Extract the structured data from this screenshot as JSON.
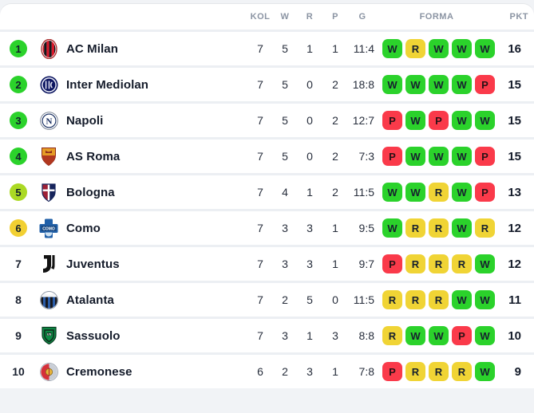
{
  "colors": {
    "win": "#2bd22b",
    "draw": "#f0d435",
    "loss": "#fa3a4a",
    "rank_green": "#2bd22b",
    "rank_lime": "#abd924",
    "rank_yellow": "#f2d032"
  },
  "table": {
    "headers": {
      "kol": "KOL",
      "w": "W",
      "r": "R",
      "p": "P",
      "g": "G",
      "forma": "FORMA",
      "pkt": "PKT"
    },
    "rows": [
      {
        "rank": "1",
        "rank_style": "green",
        "team": "AC Milan",
        "logo": "ac-milan",
        "kol": "7",
        "w": "5",
        "r": "1",
        "p": "1",
        "g": "11:4",
        "forma": [
          "W",
          "R",
          "W",
          "W",
          "W"
        ],
        "pkt": "16"
      },
      {
        "rank": "2",
        "rank_style": "green",
        "team": "Inter Mediolan",
        "logo": "inter",
        "kol": "7",
        "w": "5",
        "r": "0",
        "p": "2",
        "g": "18:8",
        "forma": [
          "W",
          "W",
          "W",
          "W",
          "P"
        ],
        "pkt": "15"
      },
      {
        "rank": "3",
        "rank_style": "green",
        "team": "Napoli",
        "logo": "napoli",
        "kol": "7",
        "w": "5",
        "r": "0",
        "p": "2",
        "g": "12:7",
        "forma": [
          "P",
          "W",
          "P",
          "W",
          "W"
        ],
        "pkt": "15"
      },
      {
        "rank": "4",
        "rank_style": "green",
        "team": "AS Roma",
        "logo": "as-roma",
        "kol": "7",
        "w": "5",
        "r": "0",
        "p": "2",
        "g": "7:3",
        "forma": [
          "P",
          "W",
          "W",
          "W",
          "P"
        ],
        "pkt": "15"
      },
      {
        "rank": "5",
        "rank_style": "lime",
        "team": "Bologna",
        "logo": "bologna",
        "kol": "7",
        "w": "4",
        "r": "1",
        "p": "2",
        "g": "11:5",
        "forma": [
          "W",
          "W",
          "R",
          "W",
          "P"
        ],
        "pkt": "13"
      },
      {
        "rank": "6",
        "rank_style": "yellow",
        "team": "Como",
        "logo": "como",
        "kol": "7",
        "w": "3",
        "r": "3",
        "p": "1",
        "g": "9:5",
        "forma": [
          "W",
          "R",
          "R",
          "W",
          "R"
        ],
        "pkt": "12"
      },
      {
        "rank": "7",
        "rank_style": "plain",
        "team": "Juventus",
        "logo": "juventus",
        "kol": "7",
        "w": "3",
        "r": "3",
        "p": "1",
        "g": "9:7",
        "forma": [
          "P",
          "R",
          "R",
          "R",
          "W"
        ],
        "pkt": "12"
      },
      {
        "rank": "8",
        "rank_style": "plain",
        "team": "Atalanta",
        "logo": "atalanta",
        "kol": "7",
        "w": "2",
        "r": "5",
        "p": "0",
        "g": "11:5",
        "forma": [
          "R",
          "R",
          "R",
          "W",
          "W"
        ],
        "pkt": "11"
      },
      {
        "rank": "9",
        "rank_style": "plain",
        "team": "Sassuolo",
        "logo": "sassuolo",
        "kol": "7",
        "w": "3",
        "r": "1",
        "p": "3",
        "g": "8:8",
        "forma": [
          "R",
          "W",
          "W",
          "P",
          "W"
        ],
        "pkt": "10"
      },
      {
        "rank": "10",
        "rank_style": "plain",
        "team": "Cremonese",
        "logo": "cremonese",
        "kol": "6",
        "w": "2",
        "r": "3",
        "p": "1",
        "g": "7:8",
        "forma": [
          "P",
          "R",
          "R",
          "R",
          "W"
        ],
        "pkt": "9"
      }
    ]
  }
}
